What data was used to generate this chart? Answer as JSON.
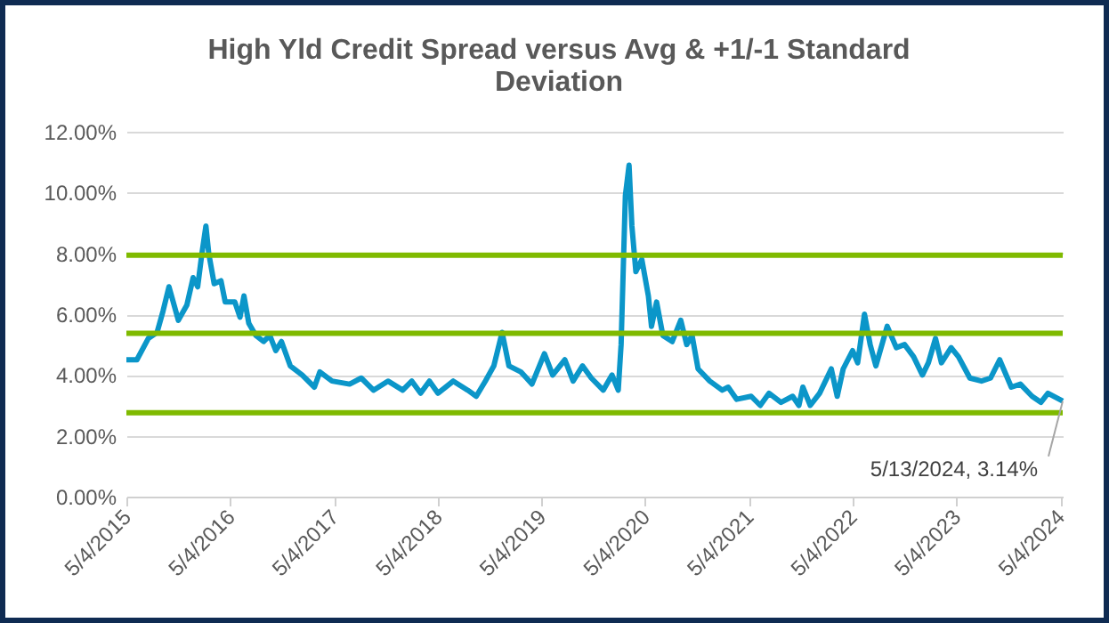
{
  "chart_data": {
    "type": "line",
    "title": "High Yld Credit Spread versus Avg & +1/-1 Standard Deviation",
    "x": [
      "2015-05-04",
      "2015-06-10",
      "2015-07-20",
      "2015-08-20",
      "2015-09-10",
      "2015-10-01",
      "2015-11-03",
      "2015-12-03",
      "2015-12-25",
      "2016-01-10",
      "2016-01-25",
      "2016-02-08",
      "2016-02-18",
      "2016-03-08",
      "2016-04-01",
      "2016-04-16",
      "2016-05-20",
      "2016-06-07",
      "2016-06-21",
      "2016-07-08",
      "2016-08-02",
      "2016-08-29",
      "2016-09-20",
      "2016-10-11",
      "2016-10-31",
      "2016-12-01",
      "2017-01-12",
      "2017-02-24",
      "2017-03-15",
      "2017-04-27",
      "2017-06-28",
      "2017-08-08",
      "2017-09-20",
      "2017-11-10",
      "2018-01-01",
      "2018-02-02",
      "2018-03-05",
      "2018-04-05",
      "2018-05-05",
      "2018-06-28",
      "2018-08-18",
      "2018-09-17",
      "2018-10-19",
      "2018-11-18",
      "2018-12-17",
      "2019-01-10",
      "2019-02-21",
      "2019-03-13",
      "2019-04-01",
      "2019-05-15",
      "2019-06-13",
      "2019-07-26",
      "2019-08-24",
      "2019-09-26",
      "2019-10-27",
      "2019-12-08",
      "2020-01-08",
      "2020-01-30",
      "2020-02-09",
      "2020-02-24",
      "2020-03-08",
      "2020-03-18",
      "2020-04-01",
      "2020-04-22",
      "2020-05-15",
      "2020-05-26",
      "2020-06-13",
      "2020-07-05",
      "2020-08-07",
      "2020-09-06",
      "2020-09-27",
      "2020-10-16",
      "2020-11-06",
      "2020-12-17",
      "2021-01-30",
      "2021-02-20",
      "2021-03-22",
      "2021-05-12",
      "2021-06-13",
      "2021-07-14",
      "2021-08-25",
      "2021-10-05",
      "2021-10-27",
      "2021-11-10",
      "2021-12-06",
      "2022-01-08",
      "2022-02-18",
      "2022-03-11",
      "2022-04-01",
      "2022-05-04",
      "2022-05-22",
      "2022-06-15",
      "2022-07-05",
      "2022-07-25",
      "2022-09-03",
      "2022-10-05",
      "2022-11-03",
      "2022-12-05",
      "2023-01-05",
      "2023-01-26",
      "2023-02-20",
      "2023-03-13",
      "2023-04-16",
      "2023-05-12",
      "2023-06-21",
      "2023-08-01",
      "2023-09-02",
      "2023-10-04",
      "2023-11-14",
      "2023-12-16",
      "2024-01-26",
      "2024-02-26",
      "2024-03-22",
      "2024-05-13"
    ],
    "series": [
      {
        "color": "#0b96c9",
        "values": [
          4.5,
          4.5,
          5.2,
          5.4,
          6.1,
          6.9,
          5.8,
          6.3,
          7.2,
          6.9,
          8.0,
          8.9,
          8.0,
          7.0,
          7.1,
          6.4,
          6.4,
          5.9,
          6.6,
          5.7,
          5.3,
          5.1,
          5.3,
          4.8,
          5.1,
          4.3,
          4.0,
          3.6,
          4.1,
          3.8,
          3.7,
          3.9,
          3.5,
          3.8,
          3.5,
          3.8,
          3.4,
          3.8,
          3.4,
          3.8,
          3.5,
          3.3,
          3.8,
          4.3,
          5.4,
          4.3,
          4.1,
          3.9,
          3.7,
          4.7,
          4.0,
          4.5,
          3.8,
          4.3,
          3.9,
          3.5,
          4.0,
          3.5,
          5.0,
          9.9,
          10.9,
          8.9,
          7.4,
          7.8,
          6.6,
          5.6,
          6.4,
          5.3,
          5.1,
          5.8,
          5.0,
          5.3,
          4.2,
          3.8,
          3.5,
          3.6,
          3.2,
          3.3,
          3.0,
          3.4,
          3.1,
          3.3,
          3.0,
          3.6,
          3.0,
          3.4,
          4.2,
          3.3,
          4.2,
          4.8,
          4.4,
          6.0,
          5.0,
          4.3,
          5.6,
          4.9,
          5.0,
          4.6,
          4.0,
          4.4,
          5.2,
          4.4,
          4.9,
          4.6,
          3.9,
          3.8,
          3.9,
          4.5,
          3.6,
          3.7,
          3.3,
          3.1,
          3.4,
          3.14
        ]
      }
    ],
    "xlim": [
      "2015-05-04",
      "2024-05-13"
    ],
    "xticks": [
      {
        "value": "2015-05-04",
        "label": "5/4/2015"
      },
      {
        "value": "2016-05-04",
        "label": "5/4/2016"
      },
      {
        "value": "2017-05-04",
        "label": "5/4/2017"
      },
      {
        "value": "2018-05-04",
        "label": "5/4/2018"
      },
      {
        "value": "2019-05-04",
        "label": "5/4/2019"
      },
      {
        "value": "2020-05-04",
        "label": "5/4/2020"
      },
      {
        "value": "2021-05-04",
        "label": "5/4/2021"
      },
      {
        "value": "2022-05-04",
        "label": "5/4/2022"
      },
      {
        "value": "2023-05-04",
        "label": "5/4/2023"
      },
      {
        "value": "2024-05-04",
        "label": "5/4/2024"
      }
    ],
    "ylim": [
      0,
      12
    ],
    "yticks": [
      {
        "value": 0,
        "label": "0.00%"
      },
      {
        "value": 2,
        "label": "2.00%"
      },
      {
        "value": 4,
        "label": "4.00%"
      },
      {
        "value": 6,
        "label": "6.00%"
      },
      {
        "value": 8,
        "label": "8.00%"
      },
      {
        "value": 10,
        "label": "10.00%"
      },
      {
        "value": 12,
        "label": "12.00%"
      }
    ],
    "ref_lines": [
      {
        "axis": "y",
        "value": 7.94,
        "color": "#7fba00"
      },
      {
        "axis": "y",
        "value": 5.37,
        "color": "#7fba00"
      },
      {
        "axis": "y",
        "value": 2.76,
        "color": "#7fba00"
      }
    ],
    "annotations": [
      {
        "text": "5/13/2024, 3.14%",
        "x": "2024-05-13",
        "y": 3.14
      }
    ],
    "grid": "y",
    "line_style": "solid"
  }
}
